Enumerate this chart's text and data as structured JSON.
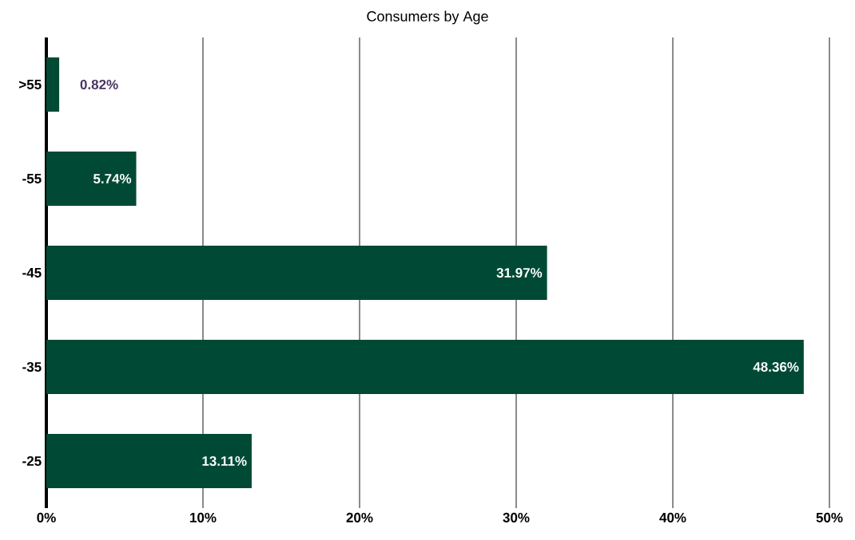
{
  "chart_data": {
    "type": "bar",
    "orientation": "horizontal",
    "title": "Consumers by Age",
    "categories": [
      ">55",
      "-55",
      "-45",
      "-35",
      "-25"
    ],
    "values": [
      0.82,
      5.74,
      31.97,
      48.36,
      13.11
    ],
    "value_labels": [
      "0.82%",
      "5.74%",
      "31.97%",
      "48.36%",
      "13.11%"
    ],
    "color": "#004a35",
    "xlim": [
      0,
      50
    ],
    "xticks": [
      {
        "value": 0,
        "label": "0%"
      },
      {
        "value": 10,
        "label": "10%"
      },
      {
        "value": 20,
        "label": "20%"
      },
      {
        "value": 30,
        "label": "30%"
      },
      {
        "value": 40,
        "label": "40%"
      },
      {
        "value": 50,
        "label": "50%"
      }
    ],
    "grid": "x"
  }
}
